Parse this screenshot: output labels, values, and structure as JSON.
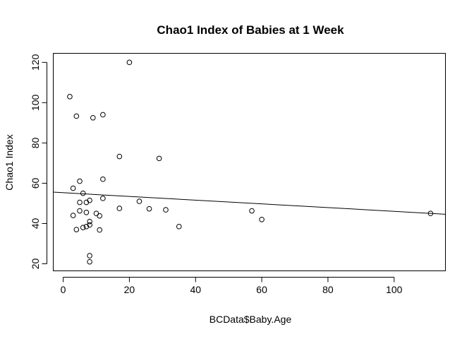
{
  "chart_data": {
    "type": "scatter",
    "title": "Chao1 Index of Babies at 1 Week",
    "xlabel": "BCData$Baby.Age",
    "ylabel": "Chao1 Index",
    "xlim": [
      -3,
      115.5
    ],
    "ylim": [
      16.5,
      124.5
    ],
    "x_ticks": [
      0,
      20,
      40,
      60,
      80,
      100
    ],
    "y_ticks": [
      20,
      40,
      60,
      80,
      100,
      120
    ],
    "x_tick_labels": [
      "0",
      "20",
      "40",
      "60",
      "80",
      "100"
    ],
    "y_tick_labels": [
      "20",
      "40",
      "60",
      "80",
      "100",
      "120"
    ],
    "grid": false,
    "legend": false,
    "points": [
      {
        "x": 2,
        "y": 103
      },
      {
        "x": 3,
        "y": 57.5
      },
      {
        "x": 3,
        "y": 44
      },
      {
        "x": 4,
        "y": 93.3
      },
      {
        "x": 4,
        "y": 37
      },
      {
        "x": 5,
        "y": 61
      },
      {
        "x": 5,
        "y": 50.5
      },
      {
        "x": 5,
        "y": 46.3
      },
      {
        "x": 6,
        "y": 55
      },
      {
        "x": 6,
        "y": 38
      },
      {
        "x": 7,
        "y": 50.5
      },
      {
        "x": 7,
        "y": 45.5
      },
      {
        "x": 7,
        "y": 38.5
      },
      {
        "x": 8,
        "y": 51.5
      },
      {
        "x": 8,
        "y": 41
      },
      {
        "x": 8,
        "y": 39.3
      },
      {
        "x": 8,
        "y": 24
      },
      {
        "x": 8,
        "y": 21
      },
      {
        "x": 9,
        "y": 92.5
      },
      {
        "x": 10,
        "y": 45
      },
      {
        "x": 11,
        "y": 43.8
      },
      {
        "x": 11,
        "y": 36.8
      },
      {
        "x": 12,
        "y": 94
      },
      {
        "x": 12,
        "y": 62
      },
      {
        "x": 12,
        "y": 52.5
      },
      {
        "x": 17,
        "y": 73.3
      },
      {
        "x": 17,
        "y": 47.5
      },
      {
        "x": 20,
        "y": 120
      },
      {
        "x": 23,
        "y": 51
      },
      {
        "x": 26,
        "y": 47.3
      },
      {
        "x": 29,
        "y": 72.3
      },
      {
        "x": 31,
        "y": 46.8
      },
      {
        "x": 35,
        "y": 38.5
      },
      {
        "x": 57,
        "y": 46.3
      },
      {
        "x": 60,
        "y": 42
      },
      {
        "x": 111,
        "y": 45
      }
    ],
    "regression_line": {
      "intercept": 55.3,
      "slope": -0.0925
    }
  }
}
